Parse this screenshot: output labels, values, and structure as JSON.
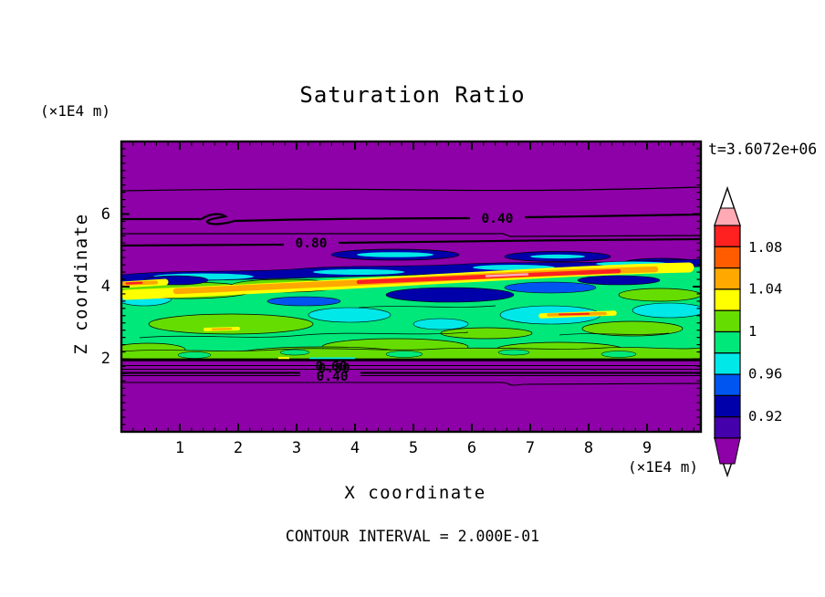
{
  "title": "Saturation Ratio",
  "annotations": {
    "time": "t=3.6072e+06",
    "contour_interval": "CONTOUR INTERVAL = 2.000E-01"
  },
  "axes": {
    "x": {
      "label": "X coordinate",
      "unit": "(×1E4 m)",
      "ticks": [
        "1",
        "2",
        "3",
        "4",
        "5",
        "6",
        "7",
        "8",
        "9"
      ]
    },
    "y": {
      "label": "Z coordinate",
      "unit": "(×1E4 m)",
      "ticks": [
        "6",
        "4",
        "2"
      ]
    }
  },
  "contour_labels": {
    "upper_040": "0.40",
    "upper_080": "0.80",
    "lower_060": "0.60",
    "lower_080": "0.80",
    "lower_040": "0.40"
  },
  "colorbar": {
    "labels": [
      "1.08",
      "1.04",
      "1",
      "0.96",
      "0.92"
    ],
    "cell_colors": [
      "#FF2020",
      "#FF5C00",
      "#FFA800",
      "#FFFF00",
      "#66DD00",
      "#00E87A",
      "#00E8E8",
      "#0055F0",
      "#0000AA",
      "#4400AA"
    ],
    "arrow_top_color": "#FFAAB4",
    "arrow_bottom_color": "#8E00A8"
  },
  "palette": {
    "background_purple": "#8E00A8",
    "pink": "#FFAAB4",
    "red": "#FF2020",
    "orange_red": "#FF5C00",
    "orange": "#FFA800",
    "yellow": "#FFFF00",
    "chartreuse": "#66DD00",
    "spring_green": "#00E87A",
    "cyan": "#00E8E8",
    "blue": "#0055F0",
    "navy": "#0000AA",
    "indigo": "#4400AA"
  },
  "chart_data": {
    "type": "heatmap",
    "title": "Saturation Ratio",
    "xlabel": "X coordinate (×1E4 m)",
    "ylabel": "Z coordinate (×1E4 m)",
    "x_ticks": [
      1,
      2,
      3,
      4,
      5,
      6,
      7,
      8,
      9
    ],
    "y_ticks": [
      2,
      4,
      6
    ],
    "x_range": [
      0,
      9.9
    ],
    "y_range": [
      0,
      8
    ],
    "time": "t=3.6072e+06",
    "contour_interval": 0.2,
    "labeled_contour_values": [
      0.4,
      0.6,
      0.8
    ],
    "colorbar_tick_labels": [
      "1.08",
      "1.04",
      "1",
      "0.96",
      "0.92"
    ],
    "colorbar_levels": [
      0.9,
      0.92,
      0.94,
      0.96,
      0.98,
      1.0,
      1.02,
      1.04,
      1.06,
      1.08,
      1.1
    ],
    "colorbar_colors_low_to_high": [
      "#8E00A8",
      "#4400AA",
      "#0000AA",
      "#0055F0",
      "#00E8E8",
      "#00E87A",
      "#66DD00",
      "#FFFF00",
      "#FFA800",
      "#FF5C00",
      "#FF2020",
      "#FFAAB4"
    ],
    "legend_position": "right",
    "grid": false,
    "field_summary": [
      {
        "region": "upper domain z≈4.8–8 and lower domain z≈0–1.7",
        "value": "subsaturated purple background, S<0.9; labeled contours 0.40 and 0.80 run quasi-horizontally near z≈5.4–6.1"
      },
      {
        "region": "turbulent cloud layer z≈2–4.6",
        "value": "mottled saturation ratio 0.9–1.1: spring-green/chartreuse (0.98–1.02) with cyan/blue/navy pockets (0.9–0.98)"
      },
      {
        "region": "thin tilted streak near z≈4, x≈1.5–9",
        "value": "supersaturated filament S≈1.04–1.12 (yellow→orange→red, small pink core near x≈5.3)"
      },
      {
        "region": "just below layer base z≈1.6–1.9",
        "value": "tightly packed 0.80/0.60/0.40 contours with overlapping labels near x≈3.5"
      },
      {
        "region": "detached lenses above layer top z≈4.4–4.7",
        "value": "navy ovals with cyan cores (S≈0.92–0.97)"
      }
    ]
  }
}
